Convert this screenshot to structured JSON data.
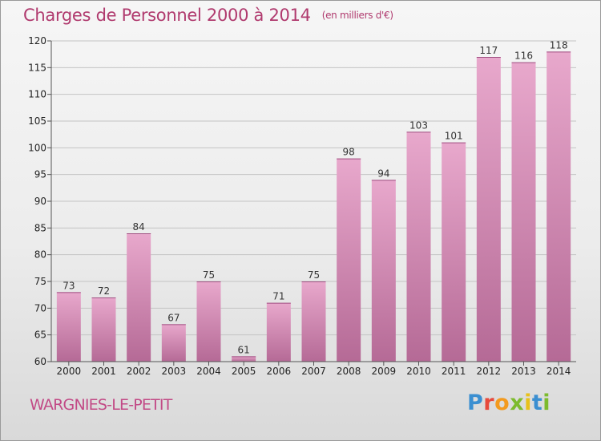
{
  "chart_data": {
    "type": "bar",
    "title": "Charges de Personnel 2000 à 2014",
    "subtitle": "(en milliers d'€)",
    "categories": [
      "2000",
      "2001",
      "2002",
      "2003",
      "2004",
      "2005",
      "2006",
      "2007",
      "2008",
      "2009",
      "2010",
      "2011",
      "2012",
      "2013",
      "2014"
    ],
    "values": [
      73,
      72,
      84,
      67,
      75,
      61,
      71,
      75,
      98,
      94,
      103,
      101,
      117,
      116,
      118
    ],
    "ylim": [
      60,
      120
    ],
    "yticks": [
      60,
      65,
      70,
      75,
      80,
      85,
      90,
      95,
      100,
      105,
      110,
      115,
      120
    ],
    "grid": true,
    "bar_color_top": "#e8a8cc",
    "bar_color_bottom": "#b56a96"
  },
  "footer": {
    "place": "WARGNIES-LE-PETIT",
    "logo_letters": [
      "P",
      "r",
      "o",
      "x",
      "i",
      "t",
      "i"
    ],
    "logo_colors": [
      "#3b8fd1",
      "#e74a3c",
      "#f39a1e",
      "#7dbb2e",
      "#e8c11a",
      "#3b8fd1",
      "#7dbb2e"
    ]
  }
}
